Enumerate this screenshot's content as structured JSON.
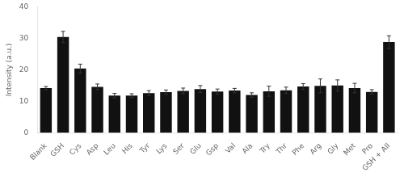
{
  "chart_data": {
    "type": "bar",
    "ylabel": "Intensity (a.u.)",
    "categories": [
      "Blank",
      "GSH",
      "Cys",
      "Asp",
      "Leu",
      "His",
      "Tyr",
      "Lys",
      "Ser",
      "Glu",
      "Gsp",
      "Val",
      "Ala",
      "Try",
      "Thr",
      "Phe",
      "Arg",
      "Gly",
      "Met",
      "Pro",
      "GSH + All"
    ],
    "values": [
      14.2,
      30.4,
      20.4,
      14.6,
      11.8,
      11.8,
      12.6,
      12.9,
      13.3,
      13.9,
      13.1,
      13.4,
      12.0,
      13.2,
      13.5,
      14.7,
      14.9,
      15.0,
      14.2,
      13.0,
      28.8
    ],
    "errors": [
      0.5,
      1.8,
      1.4,
      0.9,
      0.7,
      0.6,
      0.8,
      0.7,
      0.9,
      1.1,
      0.8,
      0.7,
      0.7,
      1.6,
      1.0,
      0.9,
      2.2,
      1.8,
      1.5,
      0.7,
      2.0
    ],
    "color": "#111111",
    "ylim": [
      0,
      40
    ],
    "yticks": [
      0,
      10,
      20,
      30,
      40
    ],
    "grid": false
  }
}
